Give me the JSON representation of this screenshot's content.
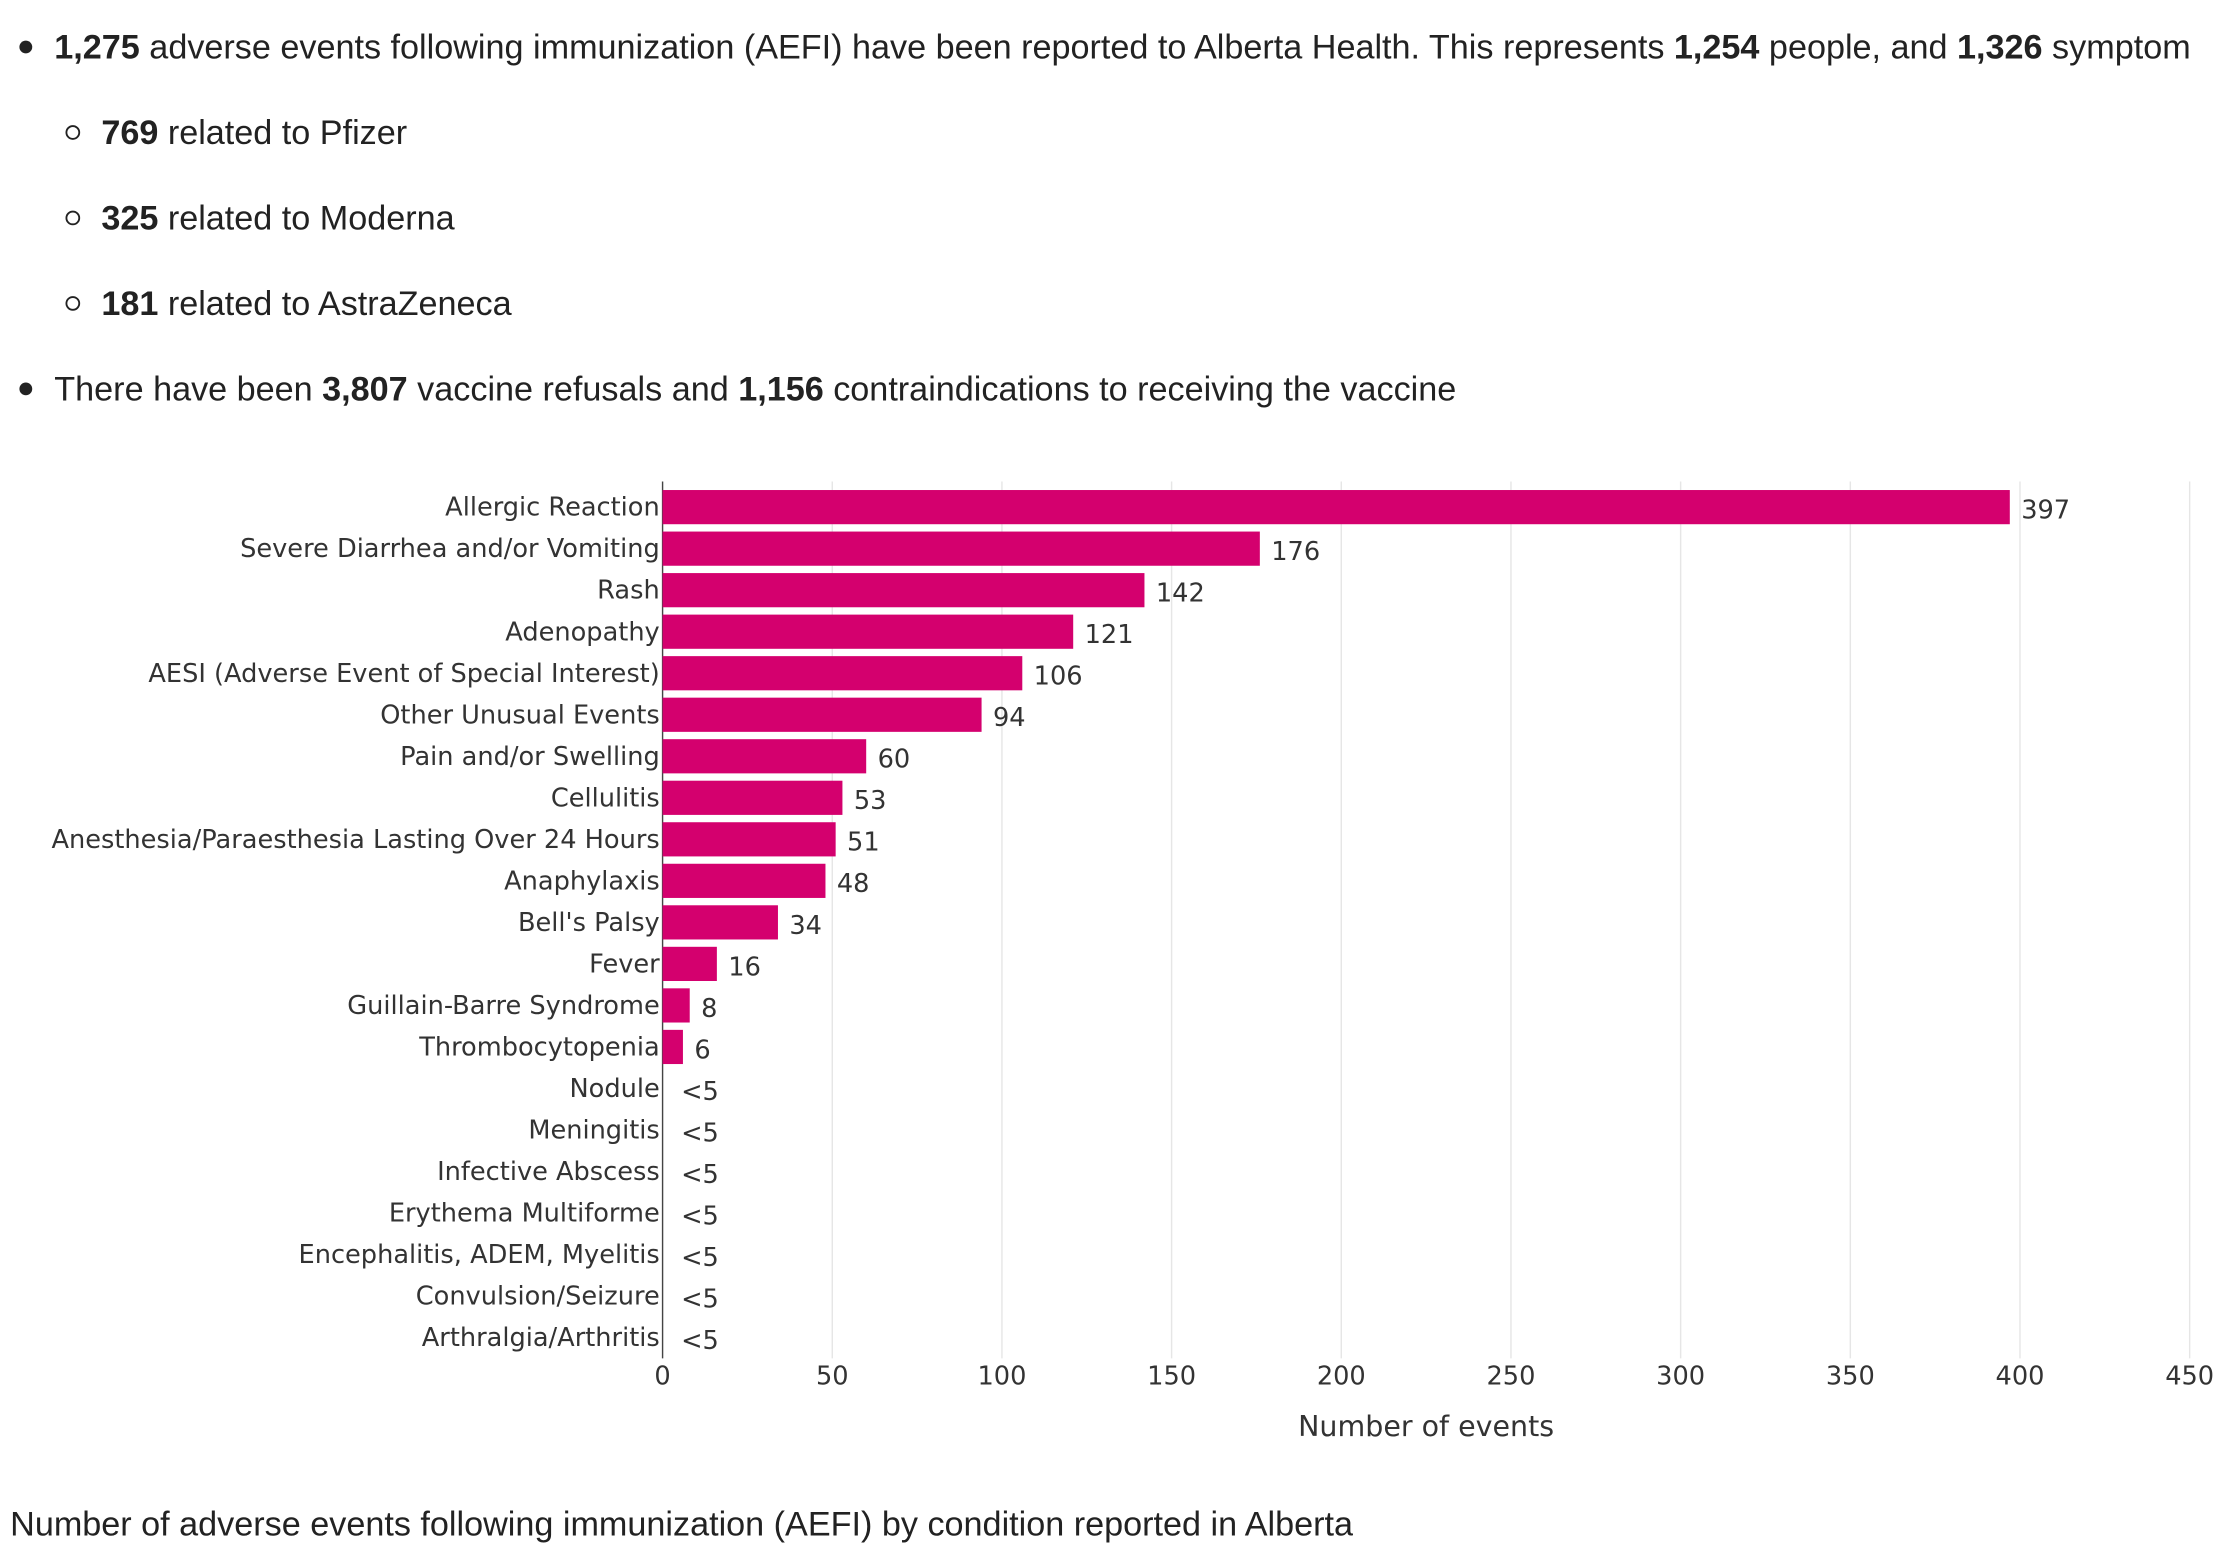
{
  "bullets": [
    {
      "segments": [
        "1,275",
        " adverse events following immunization (AEFI) have been reported to Alberta Health. This represents ",
        "1,254",
        " people, and ",
        "1,326",
        " symptom"
      ],
      "sub": [
        {
          "segments": [
            "769",
            " related to Pfizer"
          ]
        },
        {
          "segments": [
            "325",
            " related to Moderna"
          ]
        },
        {
          "segments": [
            "181",
            " related to AstraZeneca"
          ]
        }
      ]
    },
    {
      "segments": [
        "There have been ",
        "3,807",
        " vaccine refusals and ",
        "1,156",
        " contraindications to receiving the vaccine"
      ],
      "bold_odd": true,
      "sub": []
    }
  ],
  "chart_data": {
    "type": "hbar",
    "categories": [
      "Allergic Reaction",
      "Severe Diarrhea and/or Vomiting",
      "Rash",
      "Adenopathy",
      "AESI (Adverse Event of Special Interest)",
      "Other Unusual Events",
      "Pain and/or Swelling",
      "Cellulitis",
      "Anesthesia/Paraesthesia Lasting Over 24 Hours",
      "Anaphylaxis",
      "Bell's Palsy",
      "Fever",
      "Guillain-Barre Syndrome",
      "Thrombocytopenia",
      "Nodule",
      "Meningitis",
      "Infective Abscess",
      "Erythema Multiforme",
      "Encephalitis, ADEM, Myelitis",
      "Convulsion/Seizure",
      "Arthralgia/Arthritis"
    ],
    "values": [
      397,
      176,
      142,
      121,
      106,
      94,
      60,
      53,
      51,
      48,
      34,
      16,
      8,
      6,
      null,
      null,
      null,
      null,
      null,
      null,
      null
    ],
    "value_labels": [
      null,
      null,
      null,
      null,
      null,
      null,
      null,
      null,
      null,
      null,
      null,
      null,
      null,
      null,
      "<5",
      "<5",
      "<5",
      "<5",
      "<5",
      "<5",
      "<5"
    ],
    "color": "#d4006e",
    "xlim": [
      0,
      450
    ],
    "xticks": [
      0,
      50,
      100,
      150,
      200,
      250,
      300,
      350,
      400,
      450
    ],
    "xlabel": "Number of events",
    "grid": true
  },
  "caption": "Number of adverse events following immunization (AEFI) by condition reported in Alberta"
}
